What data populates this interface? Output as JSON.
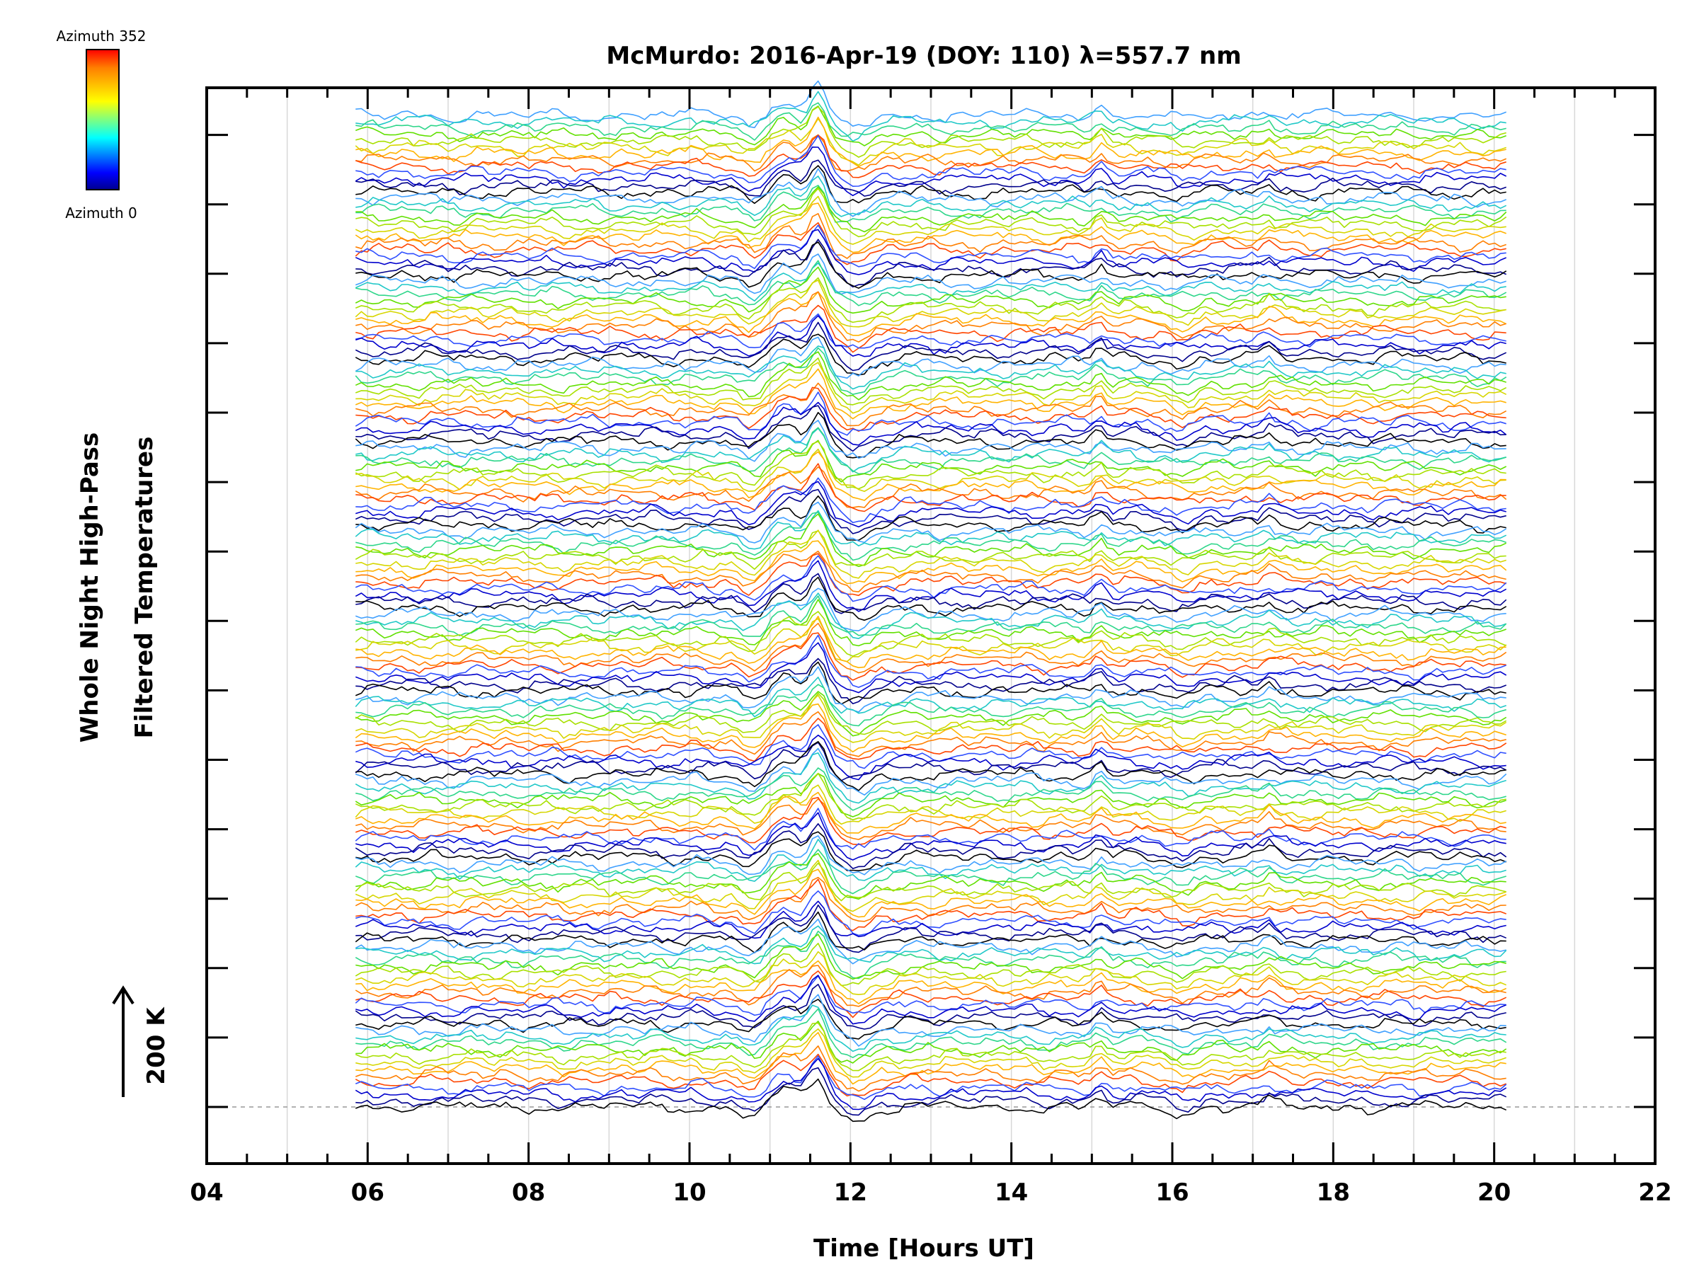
{
  "chart_data": {
    "type": "line",
    "title": "McMurdo: 2016-Apr-19 (DOY: 110) λ=557.7 nm",
    "xlabel": "Time [Hours UT]",
    "ylabel_line1": "Whole Night High-Pass",
    "ylabel_line2": "Filtered Temperatures",
    "xlim": [
      4,
      22
    ],
    "x_ticks": [
      "04",
      "06",
      "08",
      "10",
      "12",
      "14",
      "16",
      "18",
      "20",
      "22"
    ],
    "data_x_range": [
      5.85,
      20.15
    ],
    "scale_bar_label": "200 K",
    "scale_bar_value_K": 200,
    "colorbar": {
      "top_label": "Azimuth 352",
      "bottom_label": "Azimuth 0",
      "colormap": [
        "#00008f",
        "#0000ff",
        "#00ffff",
        "#7fff7f",
        "#ffff00",
        "#ff7f00",
        "#ff0000"
      ]
    },
    "series_group_colors": [
      "#000000",
      "#00008b",
      "#0000cd",
      "#3050ff",
      "#ff4500",
      "#ff7f00",
      "#ffb300",
      "#d6d600",
      "#a8e000",
      "#60e000",
      "#2ed68a",
      "#20c8c8",
      "#40a0ff"
    ],
    "grid": true,
    "baseline_dashed": true,
    "features": {
      "wave_peak_time": 11.6,
      "secondary_peaks": [
        15.1,
        17.2
      ]
    }
  }
}
